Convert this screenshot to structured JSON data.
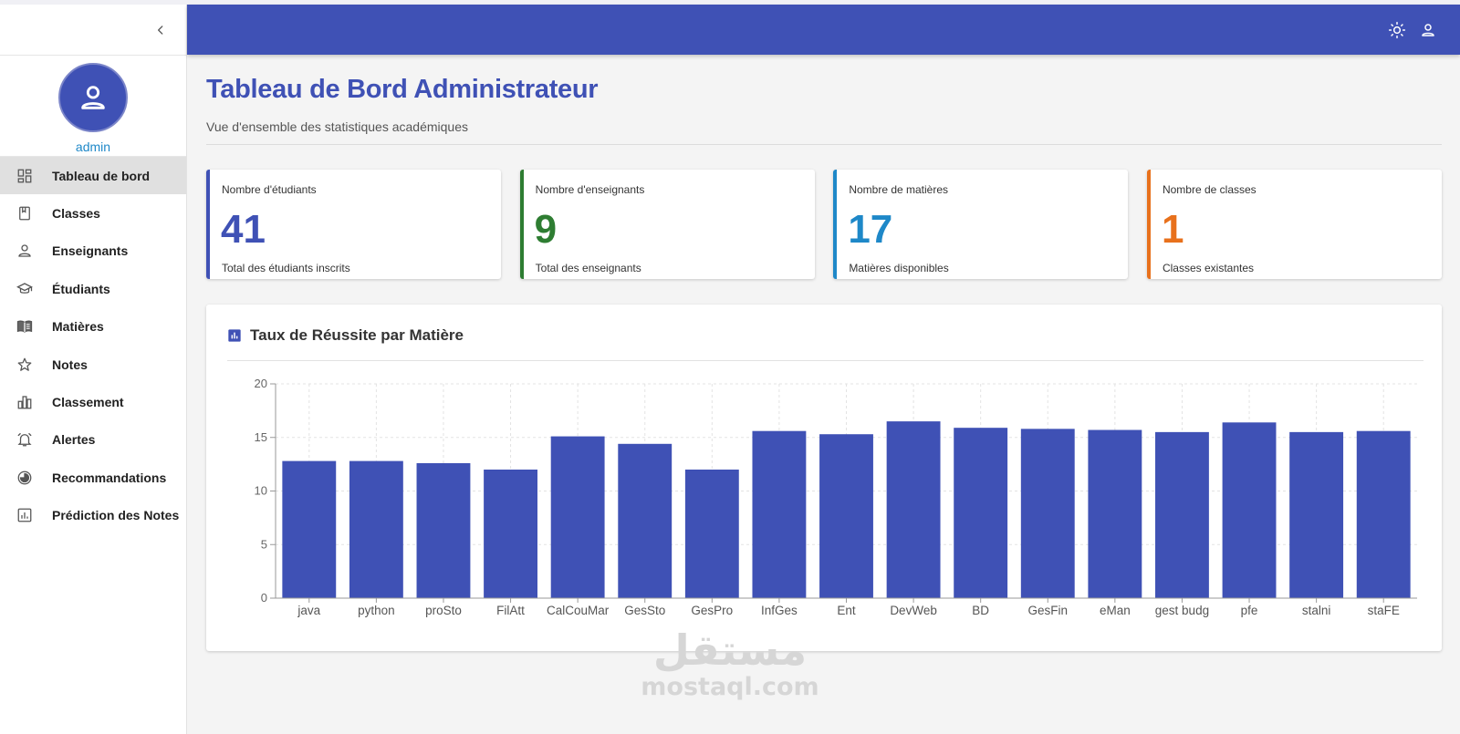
{
  "sidebar": {
    "username": "admin",
    "items": [
      {
        "label": "Tableau de bord",
        "icon": "dashboard-icon",
        "active": true
      },
      {
        "label": "Classes",
        "icon": "bookmark-icon",
        "active": false
      },
      {
        "label": "Enseignants",
        "icon": "person-icon",
        "active": false
      },
      {
        "label": "Étudiants",
        "icon": "graduation-cap-icon",
        "active": false
      },
      {
        "label": "Matières",
        "icon": "book-icon",
        "active": false
      },
      {
        "label": "Notes",
        "icon": "star-icon",
        "active": false
      },
      {
        "label": "Classement",
        "icon": "bar-ranking-icon",
        "active": false
      },
      {
        "label": "Alertes",
        "icon": "alarm-bell-icon",
        "active": false
      },
      {
        "label": "Recommandations",
        "icon": "pie-chart-icon",
        "active": false
      },
      {
        "label": "Prédiction des Notes",
        "icon": "analytics-icon",
        "active": false
      }
    ]
  },
  "header": {
    "theme_icon": "sun-icon",
    "account_icon": "account-icon"
  },
  "main": {
    "title": "Tableau de Bord Administrateur",
    "subtitle": "Vue d'ensemble des statistiques académiques",
    "cards": [
      {
        "label": "Nombre d'étudiants",
        "value": "41",
        "footer": "Total des étudiants inscrits",
        "color": "#3f51b5"
      },
      {
        "label": "Nombre d'enseignants",
        "value": "9",
        "footer": "Total des enseignants",
        "color": "#2e7d32"
      },
      {
        "label": "Nombre de matières",
        "value": "17",
        "footer": "Matières disponibles",
        "color": "#1e88c8"
      },
      {
        "label": "Nombre de classes",
        "value": "1",
        "footer": "Classes existantes",
        "color": "#e8711c"
      }
    ],
    "chart_title": "Taux de Réussite par Matière"
  },
  "colors": {
    "primary": "#3f51b5",
    "bar": "#3f51b5"
  },
  "chart_data": {
    "type": "bar",
    "title": "Taux de Réussite par Matière",
    "xlabel": "",
    "ylabel": "",
    "ylim": [
      0,
      20
    ],
    "yticks": [
      0,
      5,
      10,
      15,
      20
    ],
    "grid": true,
    "categories": [
      "java",
      "python",
      "proSto",
      "FilAtt",
      "CalCouMar",
      "GesSto",
      "GesPro",
      "InfGes",
      "Ent",
      "DevWeb",
      "BD",
      "GesFin",
      "eMan",
      "gest budg",
      "pfe",
      "stalni",
      "staFE"
    ],
    "values": [
      12.8,
      12.8,
      12.6,
      12.0,
      15.1,
      14.4,
      12.0,
      15.6,
      15.3,
      16.5,
      15.9,
      15.8,
      15.7,
      15.5,
      16.4,
      15.5,
      15.6
    ]
  },
  "watermark": {
    "arabic": "مستقل",
    "latin": "mostaql.com"
  }
}
